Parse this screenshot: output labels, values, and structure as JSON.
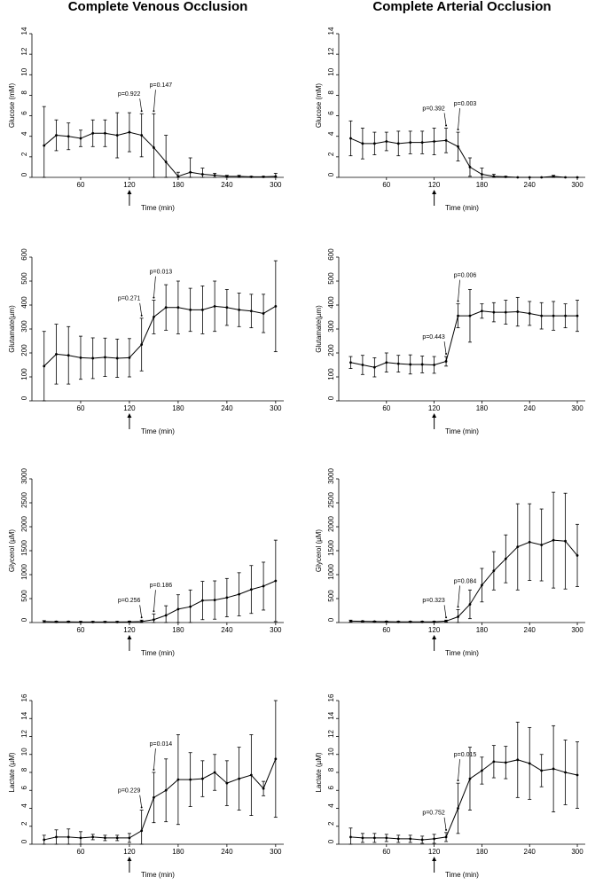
{
  "chart_data": [
    {
      "type": "line",
      "title": "Complete Venous Occlusion",
      "ylabel": "Glucose (mM)",
      "xlabel": "Time (min)",
      "color": "#000000",
      "x": [
        15,
        30,
        45,
        60,
        75,
        90,
        105,
        120,
        135,
        150,
        165,
        180,
        195,
        210,
        225,
        240,
        255,
        270,
        285,
        300
      ],
      "values": [
        3.1,
        4.1,
        4.0,
        3.8,
        4.3,
        4.3,
        4.1,
        4.4,
        4.1,
        2.9,
        1.5,
        0.1,
        0.5,
        0.3,
        0.2,
        0.1,
        0.1,
        0.05,
        0.05,
        0.1
      ],
      "errors": [
        3.8,
        1.5,
        1.3,
        0.8,
        1.3,
        1.3,
        2.2,
        1.9,
        2.1,
        3.3,
        2.6,
        0.4,
        1.4,
        0.6,
        0.2,
        0.1,
        0.1,
        0.05,
        0.05,
        0.3
      ],
      "xlim": [
        0,
        310
      ],
      "xticks": [
        60,
        120,
        180,
        240,
        300
      ],
      "ylim": [
        0,
        14
      ],
      "yticks": [
        0,
        2,
        4,
        6,
        8,
        10,
        12,
        14
      ],
      "annotations": [
        "p=0.922",
        "p=0.147"
      ]
    },
    {
      "type": "line",
      "title": "Complete Arterial Occlusion",
      "ylabel": "Glucose (mM)",
      "xlabel": "Time (min)",
      "color": "#000000",
      "x": [
        15,
        30,
        45,
        60,
        75,
        90,
        105,
        120,
        135,
        150,
        165,
        180,
        195,
        210,
        225,
        240,
        255,
        270,
        285,
        300
      ],
      "values": [
        3.8,
        3.3,
        3.3,
        3.5,
        3.3,
        3.4,
        3.4,
        3.5,
        3.6,
        3.0,
        1.0,
        0.3,
        0.1,
        0.05,
        0,
        0,
        0,
        0.1,
        0,
        0
      ],
      "errors": [
        1.7,
        1.5,
        1.1,
        0.9,
        1.2,
        1.1,
        1.1,
        1.3,
        1.2,
        1.4,
        0.9,
        0.6,
        0.2,
        0.05,
        0,
        0,
        0,
        0.1,
        0,
        0
      ],
      "xlim": [
        0,
        310
      ],
      "xticks": [
        60,
        120,
        180,
        240,
        300
      ],
      "ylim": [
        0,
        14
      ],
      "yticks": [
        0,
        2,
        4,
        6,
        8,
        10,
        12,
        14
      ],
      "annotations": [
        "p=0.392",
        "p=0.003"
      ]
    },
    {
      "type": "line",
      "ylabel": "Glutamate(µm)",
      "xlabel": "Time (min)",
      "color": "#000000",
      "x": [
        15,
        30,
        45,
        60,
        75,
        90,
        105,
        120,
        135,
        150,
        165,
        180,
        195,
        210,
        225,
        240,
        255,
        270,
        285,
        300
      ],
      "values": [
        145,
        195,
        190,
        180,
        178,
        182,
        178,
        180,
        235,
        350,
        390,
        390,
        380,
        380,
        395,
        390,
        380,
        375,
        365,
        395
      ],
      "errors": [
        145,
        125,
        120,
        90,
        85,
        80,
        80,
        80,
        110,
        70,
        95,
        110,
        90,
        100,
        105,
        75,
        70,
        70,
        80,
        190
      ],
      "xlim": [
        0,
        310
      ],
      "xticks": [
        60,
        120,
        180,
        240,
        300
      ],
      "ylim": [
        0,
        600
      ],
      "yticks": [
        0,
        100,
        200,
        300,
        400,
        500,
        600
      ],
      "annotations": [
        "p=0.271",
        "p=0.013"
      ]
    },
    {
      "type": "line",
      "ylabel": "Glutamate(µm)",
      "xlabel": "Time (min)",
      "color": "#000000",
      "x": [
        15,
        30,
        45,
        60,
        75,
        90,
        105,
        120,
        135,
        150,
        165,
        180,
        195,
        210,
        225,
        240,
        255,
        270,
        285,
        300
      ],
      "values": [
        160,
        150,
        140,
        160,
        155,
        152,
        152,
        150,
        165,
        355,
        355,
        375,
        370,
        370,
        372,
        365,
        355,
        355,
        355,
        355
      ],
      "errors": [
        25,
        40,
        40,
        40,
        35,
        40,
        35,
        35,
        20,
        50,
        110,
        30,
        40,
        50,
        60,
        50,
        55,
        60,
        50,
        65
      ],
      "xlim": [
        0,
        310
      ],
      "xticks": [
        60,
        120,
        180,
        240,
        300
      ],
      "ylim": [
        0,
        600
      ],
      "yticks": [
        0,
        100,
        200,
        300,
        400,
        500,
        600
      ],
      "annotations": [
        "p=0.443",
        "p=0.006"
      ]
    },
    {
      "type": "line",
      "ylabel": "Glycerol (µM)",
      "xlabel": "Time (min)",
      "color": "#000000",
      "x": [
        15,
        30,
        45,
        60,
        75,
        90,
        105,
        120,
        135,
        150,
        165,
        180,
        195,
        210,
        225,
        240,
        255,
        270,
        285,
        300
      ],
      "values": [
        20,
        15,
        15,
        12,
        12,
        12,
        12,
        15,
        20,
        60,
        150,
        280,
        330,
        460,
        470,
        520,
        590,
        690,
        760,
        870
      ],
      "errors": [
        20,
        15,
        15,
        12,
        12,
        12,
        12,
        15,
        30,
        120,
        200,
        300,
        350,
        400,
        400,
        400,
        450,
        500,
        500,
        850
      ],
      "xlim": [
        0,
        310
      ],
      "xticks": [
        60,
        120,
        180,
        240,
        300
      ],
      "ylim": [
        0,
        3000
      ],
      "yticks": [
        0,
        500,
        1000,
        1500,
        2000,
        2500,
        3000
      ],
      "annotations": [
        "p=0.256",
        "p=0.186"
      ]
    },
    {
      "type": "line",
      "ylabel": "Glycerol (µM)",
      "xlabel": "Time (min)",
      "color": "#000000",
      "x": [
        15,
        30,
        45,
        60,
        75,
        90,
        105,
        120,
        135,
        150,
        165,
        180,
        195,
        210,
        225,
        240,
        255,
        270,
        285,
        300
      ],
      "values": [
        30,
        25,
        20,
        18,
        15,
        15,
        15,
        15,
        30,
        120,
        380,
        780,
        1080,
        1330,
        1580,
        1680,
        1620,
        1720,
        1700,
        1400
      ],
      "errors": [
        20,
        10,
        10,
        10,
        10,
        10,
        10,
        10,
        20,
        150,
        300,
        350,
        400,
        500,
        900,
        800,
        750,
        1000,
        1000,
        650
      ],
      "xlim": [
        0,
        310
      ],
      "xticks": [
        60,
        120,
        180,
        240,
        300
      ],
      "ylim": [
        0,
        3000
      ],
      "yticks": [
        0,
        500,
        1000,
        1500,
        2000,
        2500,
        3000
      ],
      "annotations": [
        "p=0.323",
        "p=0.084"
      ]
    },
    {
      "type": "line",
      "ylabel": "Lactate (µM)",
      "xlabel": "Time (min)",
      "color": "#000000",
      "x": [
        15,
        30,
        45,
        60,
        75,
        90,
        105,
        120,
        135,
        150,
        165,
        180,
        195,
        210,
        225,
        240,
        255,
        270,
        285,
        300
      ],
      "values": [
        0.5,
        0.8,
        0.8,
        0.7,
        0.8,
        0.7,
        0.7,
        0.7,
        1.5,
        5.2,
        6.0,
        7.2,
        7.2,
        7.3,
        8.0,
        6.8,
        7.3,
        7.7,
        6.2,
        9.5
      ],
      "errors": [
        0.5,
        0.8,
        0.9,
        0.7,
        0.3,
        0.3,
        0.3,
        0.5,
        2.3,
        2.8,
        3.5,
        5,
        3,
        2,
        2,
        2.5,
        3.5,
        4.5,
        0.8,
        6.5
      ],
      "xlim": [
        0,
        310
      ],
      "xticks": [
        60,
        120,
        180,
        240,
        300
      ],
      "ylim": [
        0,
        16
      ],
      "yticks": [
        0,
        2,
        4,
        6,
        8,
        10,
        12,
        14,
        16
      ],
      "annotations": [
        "p=0.229",
        "p=0.014"
      ]
    },
    {
      "type": "line",
      "ylabel": "Lactate (µM)",
      "xlabel": "Time (min)",
      "color": "#000000",
      "x": [
        15,
        30,
        45,
        60,
        75,
        90,
        105,
        120,
        135,
        150,
        165,
        180,
        195,
        210,
        225,
        240,
        255,
        270,
        285,
        300
      ],
      "values": [
        0.8,
        0.7,
        0.7,
        0.7,
        0.6,
        0.6,
        0.5,
        0.6,
        0.8,
        4.0,
        7.3,
        8.2,
        9.2,
        9.1,
        9.4,
        9.0,
        8.2,
        8.4,
        8.0,
        7.7
      ],
      "errors": [
        1.0,
        0.5,
        0.5,
        0.4,
        0.4,
        0.4,
        0.4,
        0.5,
        0.5,
        2.8,
        3.5,
        1.5,
        1.8,
        1.8,
        4.2,
        4.0,
        1.8,
        4.8,
        3.6,
        3.7
      ],
      "xlim": [
        0,
        310
      ],
      "xticks": [
        60,
        120,
        180,
        240,
        300
      ],
      "ylim": [
        0,
        16
      ],
      "yticks": [
        0,
        2,
        4,
        6,
        8,
        10,
        12,
        14,
        16
      ],
      "annotations": [
        "p=0.752",
        "p=0.015"
      ]
    }
  ]
}
